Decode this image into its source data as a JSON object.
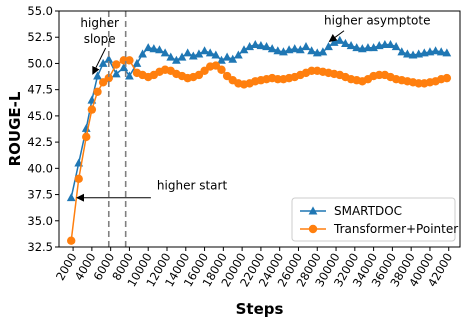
{
  "chart_data": {
    "type": "line",
    "xlabel": "Steps",
    "ylabel": "ROUGE-L",
    "xlim": [
      500,
      43200
    ],
    "ylim": [
      32.5,
      55.0
    ],
    "x_ticks": [
      2000,
      4000,
      6000,
      8000,
      10000,
      12000,
      14000,
      16000,
      18000,
      20000,
      22000,
      24000,
      26000,
      28000,
      30000,
      32000,
      34000,
      36000,
      38000,
      40000,
      42000
    ],
    "y_ticks": [
      "32.5",
      "35.0",
      "37.5",
      "40.0",
      "42.5",
      "45.0",
      "47.5",
      "50.0",
      "52.5",
      "55.0"
    ],
    "grid": false,
    "legend_position": "lower-right",
    "vlines": [
      {
        "x": 5800,
        "style": "dashed"
      },
      {
        "x": 7600,
        "style": "dashed"
      }
    ],
    "annotations": [
      {
        "text": "higher",
        "line2": "slope",
        "x": 2700,
        "y": 53.0,
        "arrow_to": [
          4100,
          49.0
        ]
      },
      {
        "text": "higher asymptote",
        "x": 30000,
        "y": 53.5,
        "arrow_to": [
          29300,
          52.1
        ]
      },
      {
        "text": "higher start",
        "x": 10500,
        "y": 37.8,
        "arrow_to": [
          2100,
          37.2
        ]
      }
    ],
    "series": [
      {
        "name": "SMARTDOC",
        "color": "#1f77b4",
        "marker": "triangle",
        "x": [
          1800,
          2600,
          3400,
          4000,
          4600,
          5200,
          5800,
          6600,
          7400,
          8000,
          8800,
          9400,
          10000,
          10600,
          11200,
          11800,
          12400,
          13000,
          13600,
          14200,
          14800,
          15400,
          16000,
          16600,
          17200,
          17800,
          18400,
          19000,
          19600,
          20200,
          20800,
          21400,
          22000,
          22600,
          23200,
          23800,
          24400,
          25000,
          25600,
          26200,
          26800,
          27400,
          28000,
          28600,
          29200,
          29800,
          30400,
          31000,
          31600,
          32200,
          32800,
          33400,
          34000,
          34600,
          35200,
          35800,
          36400,
          37000,
          37600,
          38200,
          38800,
          39400,
          40000,
          40600,
          41200,
          41800
        ],
        "y": [
          37.2,
          40.5,
          43.8,
          46.5,
          48.8,
          50.0,
          50.4,
          49.0,
          49.6,
          48.8,
          50.0,
          50.9,
          51.5,
          51.4,
          51.3,
          51.0,
          50.6,
          50.3,
          50.6,
          51.0,
          50.7,
          50.9,
          51.2,
          51.0,
          50.8,
          50.3,
          50.6,
          50.4,
          50.8,
          51.3,
          51.6,
          51.8,
          51.7,
          51.6,
          51.4,
          51.2,
          51.1,
          51.3,
          51.4,
          51.3,
          51.6,
          51.2,
          51.0,
          51.1,
          51.6,
          52.0,
          52.2,
          51.9,
          51.7,
          51.5,
          51.4,
          51.5,
          51.5,
          51.7,
          51.8,
          51.8,
          51.6,
          51.1,
          50.9,
          50.8,
          50.9,
          51.0,
          51.1,
          51.2,
          51.1,
          51.0
        ]
      },
      {
        "name": "Transformer+Pointer",
        "color": "#ff7f0e",
        "marker": "circle",
        "x": [
          1800,
          2600,
          3400,
          4000,
          4600,
          5200,
          5800,
          6600,
          7400,
          8000,
          8800,
          9400,
          10000,
          10600,
          11200,
          11800,
          12400,
          13000,
          13600,
          14200,
          14800,
          15400,
          16000,
          16600,
          17200,
          17800,
          18400,
          19000,
          19600,
          20200,
          20800,
          21400,
          22000,
          22600,
          23200,
          23800,
          24400,
          25000,
          25600,
          26200,
          26800,
          27400,
          28000,
          28600,
          29200,
          29800,
          30400,
          31000,
          31600,
          32200,
          32800,
          33400,
          34000,
          34600,
          35200,
          35800,
          36400,
          37000,
          37600,
          38200,
          38800,
          39400,
          40000,
          40600,
          41200,
          41800
        ],
        "y": [
          33.1,
          39.0,
          43.0,
          45.6,
          47.3,
          48.2,
          48.6,
          49.9,
          50.3,
          50.3,
          49.1,
          48.9,
          48.7,
          48.9,
          49.2,
          49.4,
          49.3,
          49.0,
          48.8,
          48.6,
          48.7,
          48.9,
          49.3,
          49.7,
          49.8,
          49.4,
          48.8,
          48.4,
          48.1,
          48.0,
          48.1,
          48.3,
          48.4,
          48.5,
          48.6,
          48.5,
          48.5,
          48.6,
          48.7,
          48.9,
          49.1,
          49.3,
          49.3,
          49.2,
          49.1,
          49.0,
          48.9,
          48.7,
          48.5,
          48.4,
          48.3,
          48.5,
          48.8,
          48.9,
          48.9,
          48.7,
          48.5,
          48.4,
          48.3,
          48.2,
          48.1,
          48.1,
          48.2,
          48.3,
          48.5,
          48.6
        ]
      }
    ]
  }
}
